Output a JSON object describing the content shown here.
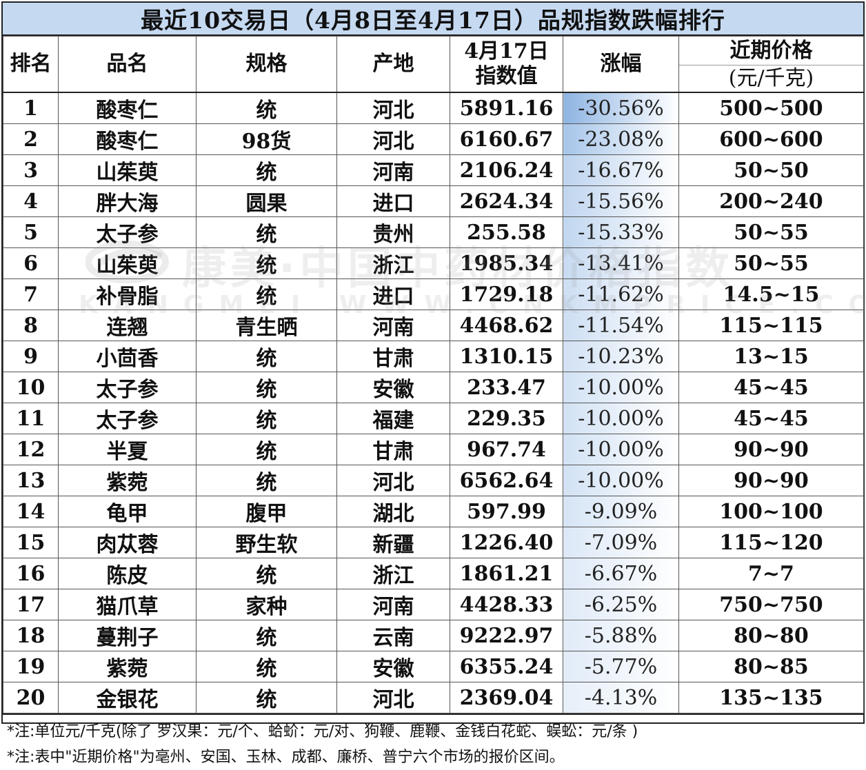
{
  "title": "最近10交易日（4月8日至4月17日）品规指数跌幅排行",
  "headers": {
    "rank": "排名",
    "name": "品名",
    "spec": "规格",
    "origin": "产地",
    "index_line1": "4月17日",
    "index_line2": "指数值",
    "change": "涨幅",
    "price_line1": "近期价格",
    "price_line2": "(元/千克)"
  },
  "rows": [
    {
      "rank": "1",
      "name": "酸枣仁",
      "spec": "统",
      "origin": "河北",
      "index": "5891.16",
      "change": "-30.56%",
      "change_pct": -30.56,
      "price": "500~500"
    },
    {
      "rank": "2",
      "name": "酸枣仁",
      "spec": "98货",
      "origin": "河北",
      "index": "6160.67",
      "change": "-23.08%",
      "change_pct": -23.08,
      "price": "600~600"
    },
    {
      "rank": "3",
      "name": "山茱萸",
      "spec": "统",
      "origin": "河南",
      "index": "2106.24",
      "change": "-16.67%",
      "change_pct": -16.67,
      "price": "50~50"
    },
    {
      "rank": "4",
      "name": "胖大海",
      "spec": "圆果",
      "origin": "进口",
      "index": "2624.34",
      "change": "-15.56%",
      "change_pct": -15.56,
      "price": "200~240"
    },
    {
      "rank": "5",
      "name": "太子参",
      "spec": "统",
      "origin": "贵州",
      "index": "255.58",
      "change": "-15.33%",
      "change_pct": -15.33,
      "price": "50~55"
    },
    {
      "rank": "6",
      "name": "山茱萸",
      "spec": "统",
      "origin": "浙江",
      "index": "1985.34",
      "change": "-13.41%",
      "change_pct": -13.41,
      "price": "50~55"
    },
    {
      "rank": "7",
      "name": "补骨脂",
      "spec": "统",
      "origin": "进口",
      "index": "1729.18",
      "change": "-11.62%",
      "change_pct": -11.62,
      "price": "14.5~15"
    },
    {
      "rank": "8",
      "name": "连翘",
      "spec": "青生晒",
      "origin": "河南",
      "index": "4468.62",
      "change": "-11.54%",
      "change_pct": -11.54,
      "price": "115~115"
    },
    {
      "rank": "9",
      "name": "小茴香",
      "spec": "统",
      "origin": "甘肃",
      "index": "1310.15",
      "change": "-10.23%",
      "change_pct": -10.23,
      "price": "13~15"
    },
    {
      "rank": "10",
      "name": "太子参",
      "spec": "统",
      "origin": "安徽",
      "index": "233.47",
      "change": "-10.00%",
      "change_pct": -10.0,
      "price": "45~45"
    },
    {
      "rank": "11",
      "name": "太子参",
      "spec": "统",
      "origin": "福建",
      "index": "229.35",
      "change": "-10.00%",
      "change_pct": -10.0,
      "price": "45~45"
    },
    {
      "rank": "12",
      "name": "半夏",
      "spec": "统",
      "origin": "甘肃",
      "index": "967.74",
      "change": "-10.00%",
      "change_pct": -10.0,
      "price": "90~90"
    },
    {
      "rank": "13",
      "name": "紫菀",
      "spec": "统",
      "origin": "河北",
      "index": "6562.64",
      "change": "-10.00%",
      "change_pct": -10.0,
      "price": "90~90"
    },
    {
      "rank": "14",
      "name": "龟甲",
      "spec": "腹甲",
      "origin": "湖北",
      "index": "597.99",
      "change": "-9.09%",
      "change_pct": -9.09,
      "price": "100~100"
    },
    {
      "rank": "15",
      "name": "肉苁蓉",
      "spec": "野生软",
      "origin": "新疆",
      "index": "1226.40",
      "change": "-7.09%",
      "change_pct": -7.09,
      "price": "115~120"
    },
    {
      "rank": "16",
      "name": "陈皮",
      "spec": "统",
      "origin": "浙江",
      "index": "1861.21",
      "change": "-6.67%",
      "change_pct": -6.67,
      "price": "7~7"
    },
    {
      "rank": "17",
      "name": "猫爪草",
      "spec": "家种",
      "origin": "河南",
      "index": "4428.33",
      "change": "-6.25%",
      "change_pct": -6.25,
      "price": "750~750"
    },
    {
      "rank": "18",
      "name": "蔓荆子",
      "spec": "统",
      "origin": "云南",
      "index": "9222.97",
      "change": "-5.88%",
      "change_pct": -5.88,
      "price": "80~80"
    },
    {
      "rank": "19",
      "name": "紫菀",
      "spec": "统",
      "origin": "安徽",
      "index": "6355.24",
      "change": "-5.77%",
      "change_pct": -5.77,
      "price": "80~85"
    },
    {
      "rank": "20",
      "name": "金银花",
      "spec": "统",
      "origin": "河北",
      "index": "2369.04",
      "change": "-4.13%",
      "change_pct": -4.13,
      "price": "135~135"
    }
  ],
  "notes": [
    "*注:单位元/千克(除了 罗汉果：元/个、蛤蚧：元/对、狗鞭、鹿鞭、金钱白花蛇、蜈蚣：元/条 )",
    "*注:表中\"近期价格\"为亳州、安国、玉林、成都、廉桥、普宁六个市场的报价区间。"
  ],
  "watermark": {
    "text": "康美·中国中药材价格指数",
    "subtext": "KANGMEI WWW.CNKMPRICE.COM"
  },
  "colors": {
    "title_bg": "#c5d9f1",
    "bar_strong": "#8db4e2",
    "bar_light": "#f4f8fd"
  }
}
